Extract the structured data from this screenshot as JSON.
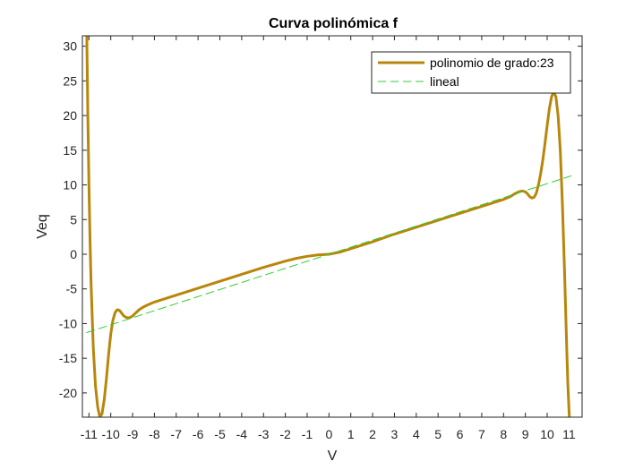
{
  "chart_data": {
    "type": "line",
    "title": "Curva polinómica f",
    "xlabel": "V",
    "ylabel": "Veq",
    "xlim": [
      -11.3,
      11.6
    ],
    "ylim": [
      -23.5,
      31.5
    ],
    "xticks": [
      -11,
      -10,
      -9,
      -8,
      -7,
      -6,
      -5,
      -4,
      -3,
      -2,
      -1,
      0,
      1,
      2,
      3,
      4,
      5,
      6,
      7,
      8,
      9,
      10,
      11
    ],
    "xtick_labels": [
      "-11",
      "-10",
      "-9",
      "-8",
      "-7",
      "-6",
      "-5",
      "-4",
      "-3",
      "-2",
      "-1",
      "0",
      "1",
      "2",
      "3",
      "4",
      "5",
      "6",
      "7",
      "8",
      "9",
      "10",
      "11"
    ],
    "yticks": [
      -20,
      -15,
      -10,
      -5,
      0,
      5,
      10,
      15,
      20,
      25,
      30
    ],
    "ytick_labels": [
      "-20",
      "-15",
      "-10",
      "-5",
      "0",
      "5",
      "10",
      "15",
      "20",
      "25",
      "30"
    ],
    "grid": false,
    "legend_position": "top-right",
    "series": [
      {
        "name": "polinomio de grado:23",
        "style": "solid",
        "color": "#B8860B",
        "x": [
          -11.1,
          -11.05,
          -11.0,
          -10.95,
          -10.9,
          -10.8,
          -10.7,
          -10.6,
          -10.5,
          -10.4,
          -10.3,
          -10.2,
          -10.1,
          -10.0,
          -9.9,
          -9.8,
          -9.7,
          -9.6,
          -9.5,
          -9.4,
          -9.3,
          -9.2,
          -9.1,
          -9.0,
          -8.9,
          -8.8,
          -8.7,
          -8.5,
          -8.3,
          -8.0,
          -7.5,
          -7.0,
          -6.0,
          -5.0,
          -4.0,
          -3.0,
          -2.0,
          -1.5,
          -1.0,
          -0.5,
          0.0,
          0.5,
          1.0,
          2.0,
          3.0,
          4.0,
          5.0,
          6.0,
          7.0,
          7.5,
          8.0,
          8.3,
          8.5,
          8.7,
          8.8,
          8.9,
          9.0,
          9.1,
          9.2,
          9.3,
          9.4,
          9.5,
          9.6,
          9.7,
          9.8,
          9.9,
          10.0,
          10.1,
          10.2,
          10.3,
          10.4,
          10.5,
          10.6,
          10.7,
          10.8,
          10.9,
          10.95,
          11.0,
          11.05,
          11.1
        ],
        "y": [
          32.0,
          20.0,
          10.0,
          2.0,
          -4.5,
          -13.5,
          -19.0,
          -22.0,
          -23.5,
          -23.0,
          -21.0,
          -18.0,
          -14.5,
          -11.5,
          -9.5,
          -8.4,
          -8.0,
          -8.1,
          -8.5,
          -8.9,
          -9.1,
          -9.2,
          -9.1,
          -8.9,
          -8.6,
          -8.3,
          -8.0,
          -7.6,
          -7.3,
          -6.9,
          -6.4,
          -5.9,
          -4.9,
          -3.9,
          -2.9,
          -1.9,
          -1.0,
          -0.6,
          -0.3,
          -0.1,
          0.0,
          0.3,
          0.8,
          1.8,
          2.9,
          3.9,
          4.9,
          5.9,
          6.9,
          7.4,
          7.9,
          8.3,
          8.7,
          9.0,
          9.1,
          9.1,
          9.0,
          8.7,
          8.3,
          8.1,
          8.2,
          8.8,
          10.0,
          11.6,
          13.6,
          16.0,
          18.6,
          21.0,
          22.7,
          23.4,
          22.7,
          20.0,
          15.0,
          7.0,
          -3.0,
          -14.0,
          -19.0,
          -22.5,
          -26.0,
          -32.0
        ]
      },
      {
        "name": "lineal",
        "style": "dashed",
        "color": "#33CC33",
        "x": [
          -11.1,
          11.1
        ],
        "y": [
          -11.3,
          11.3
        ]
      }
    ]
  }
}
